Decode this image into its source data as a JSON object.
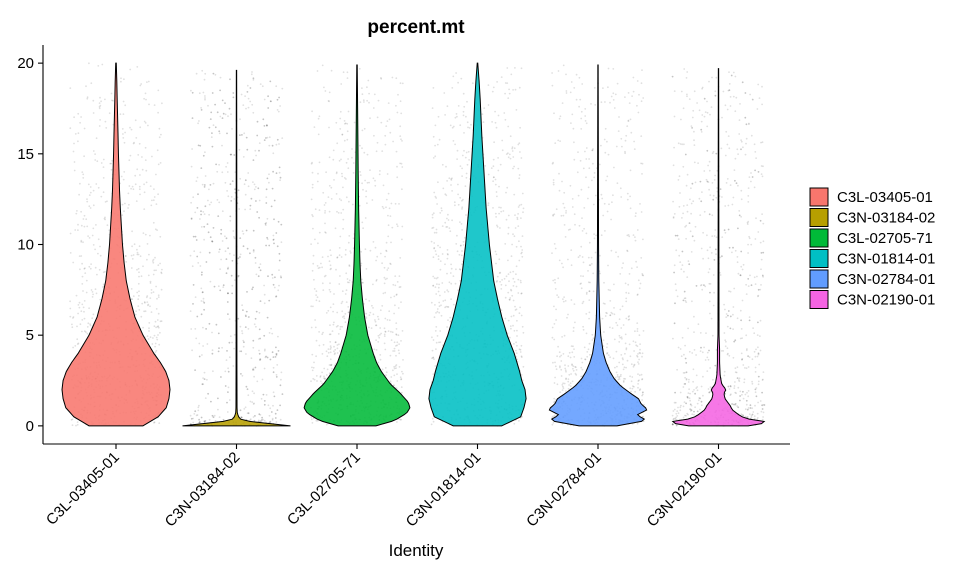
{
  "chart_data": {
    "type": "violin",
    "title": "percent.mt",
    "xlabel": "Identity",
    "ylabel": "",
    "ylim": [
      -1,
      21
    ],
    "yticks": [
      0,
      5,
      10,
      15,
      20
    ],
    "ytick_labels": [
      "0",
      "5",
      "10",
      "15",
      "20"
    ],
    "categories": [
      "C3L-03405-01",
      "C3N-03184-02",
      "C3L-02705-71",
      "C3N-01814-01",
      "C3N-02784-01",
      "C3N-02190-01"
    ],
    "legend": {
      "position": "right",
      "entries": [
        "C3L-03405-01",
        "C3N-03184-02",
        "C3L-02705-71",
        "C3N-01814-01",
        "C3N-02784-01",
        "C3N-02190-01"
      ]
    },
    "grid": false,
    "series": [
      {
        "color": "#F8766D",
        "max": 20,
        "density": [
          [
            0,
            0.5
          ],
          [
            0.5,
            0.78
          ],
          [
            1,
            0.93
          ],
          [
            1.5,
            0.98
          ],
          [
            2,
            1.0
          ],
          [
            2.5,
            0.98
          ],
          [
            3,
            0.92
          ],
          [
            3.5,
            0.82
          ],
          [
            4,
            0.7
          ],
          [
            5,
            0.5
          ],
          [
            6,
            0.35
          ],
          [
            7,
            0.26
          ],
          [
            8,
            0.19
          ],
          [
            9,
            0.15
          ],
          [
            10,
            0.12
          ],
          [
            11,
            0.1
          ],
          [
            12,
            0.08
          ],
          [
            13,
            0.065
          ],
          [
            14,
            0.055
          ],
          [
            15,
            0.045
          ],
          [
            16,
            0.038
          ],
          [
            17,
            0.03
          ],
          [
            18,
            0.022
          ],
          [
            19,
            0.015
          ],
          [
            20,
            0.005
          ]
        ]
      },
      {
        "color": "#B79F00",
        "max": 19.6,
        "density": [
          [
            0,
            1.0
          ],
          [
            0.1,
            0.7
          ],
          [
            0.2,
            0.35
          ],
          [
            0.3,
            0.12
          ],
          [
            0.4,
            0.06
          ],
          [
            0.5,
            0.04
          ],
          [
            0.7,
            0.015
          ],
          [
            1,
            0.01
          ],
          [
            3,
            0.008
          ],
          [
            6,
            0.007
          ],
          [
            10,
            0.006
          ],
          [
            15,
            0.005
          ],
          [
            19.6,
            0.003
          ]
        ]
      },
      {
        "color": "#00BA38",
        "max": 19.9,
        "density": [
          [
            0,
            0.35
          ],
          [
            0.3,
            0.7
          ],
          [
            0.7,
            0.92
          ],
          [
            1,
            0.98
          ],
          [
            1.3,
            0.95
          ],
          [
            1.8,
            0.8
          ],
          [
            2.3,
            0.62
          ],
          [
            3,
            0.45
          ],
          [
            3.5,
            0.36
          ],
          [
            4,
            0.3
          ],
          [
            5,
            0.2
          ],
          [
            6,
            0.14
          ],
          [
            7,
            0.1
          ],
          [
            8,
            0.07
          ],
          [
            9,
            0.055
          ],
          [
            10,
            0.045
          ],
          [
            12,
            0.03
          ],
          [
            14,
            0.022
          ],
          [
            16,
            0.016
          ],
          [
            18,
            0.01
          ],
          [
            19.9,
            0.004
          ]
        ]
      },
      {
        "color": "#00BFC4",
        "max": 20,
        "density": [
          [
            0,
            0.45
          ],
          [
            0.5,
            0.8
          ],
          [
            1,
            0.86
          ],
          [
            1.5,
            0.9
          ],
          [
            2,
            0.88
          ],
          [
            2.5,
            0.82
          ],
          [
            3,
            0.78
          ],
          [
            4,
            0.68
          ],
          [
            5,
            0.55
          ],
          [
            6,
            0.45
          ],
          [
            7,
            0.37
          ],
          [
            8,
            0.3
          ],
          [
            9,
            0.26
          ],
          [
            10,
            0.22
          ],
          [
            11,
            0.19
          ],
          [
            12,
            0.16
          ],
          [
            13,
            0.14
          ],
          [
            14,
            0.12
          ],
          [
            15,
            0.1
          ],
          [
            16,
            0.08
          ],
          [
            17,
            0.065
          ],
          [
            18,
            0.05
          ],
          [
            19,
            0.03
          ],
          [
            20,
            0.005
          ]
        ]
      },
      {
        "color": "#619CFF",
        "max": 19.9,
        "density": [
          [
            0,
            0.35
          ],
          [
            0.3,
            0.9
          ],
          [
            0.6,
            0.72
          ],
          [
            0.9,
            0.92
          ],
          [
            1.2,
            0.8
          ],
          [
            1.5,
            0.75
          ],
          [
            1.8,
            0.6
          ],
          [
            2.2,
            0.42
          ],
          [
            2.6,
            0.3
          ],
          [
            3,
            0.22
          ],
          [
            3.5,
            0.15
          ],
          [
            4,
            0.1
          ],
          [
            5,
            0.05
          ],
          [
            6,
            0.03
          ],
          [
            8,
            0.015
          ],
          [
            10,
            0.01
          ],
          [
            14,
            0.007
          ],
          [
            19.9,
            0.003
          ]
        ]
      },
      {
        "color": "#F564E3",
        "max": 19.7,
        "density": [
          [
            0,
            0.55
          ],
          [
            0.2,
            0.95
          ],
          [
            0.4,
            0.5
          ],
          [
            0.6,
            0.38
          ],
          [
            0.9,
            0.25
          ],
          [
            1.1,
            0.22
          ],
          [
            1.5,
            0.12
          ],
          [
            1.8,
            0.1
          ],
          [
            2,
            0.14
          ],
          [
            2.3,
            0.06
          ],
          [
            2.8,
            0.03
          ],
          [
            3.5,
            0.02
          ],
          [
            4.2,
            0.02
          ],
          [
            5,
            0.01
          ],
          [
            8,
            0.008
          ],
          [
            12,
            0.006
          ],
          [
            19.7,
            0.003
          ]
        ]
      }
    ]
  }
}
